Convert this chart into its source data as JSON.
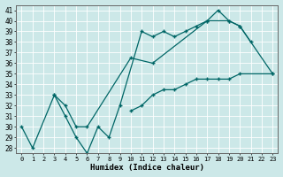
{
  "xlabel": "Humidex (Indice chaleur)",
  "background_color": "#cce8e8",
  "line_color": "#006666",
  "xlim": [
    -0.5,
    23.5
  ],
  "ylim": [
    27.5,
    41.5
  ],
  "xticks": [
    0,
    1,
    2,
    3,
    4,
    5,
    6,
    7,
    8,
    9,
    10,
    11,
    12,
    13,
    14,
    15,
    16,
    17,
    18,
    19,
    20,
    21,
    22,
    23
  ],
  "yticks": [
    28,
    29,
    30,
    31,
    32,
    33,
    34,
    35,
    36,
    37,
    38,
    39,
    40,
    41
  ],
  "series1_x": [
    0,
    1,
    3,
    4,
    5,
    6,
    7,
    8,
    9,
    11,
    12,
    13,
    14,
    15,
    16,
    17,
    18,
    19,
    20,
    21
  ],
  "series1_y": [
    30,
    28,
    33,
    31,
    29,
    27.5,
    30,
    29,
    32,
    39,
    38.5,
    39,
    38.5,
    39,
    39.5,
    40,
    41,
    40,
    39.5,
    38
  ],
  "series2_x": [
    3,
    4,
    5,
    6,
    10,
    12,
    17,
    19,
    20,
    23
  ],
  "series2_y": [
    33,
    32,
    30,
    30,
    36.5,
    36,
    40,
    40,
    39.5,
    35
  ],
  "series3_x": [
    10,
    11,
    12,
    13,
    14,
    15,
    16,
    17,
    18,
    19,
    20,
    23
  ],
  "series3_y": [
    31.5,
    32,
    33,
    33.5,
    33.5,
    34,
    34.5,
    34.5,
    34.5,
    34.5,
    35,
    35
  ]
}
